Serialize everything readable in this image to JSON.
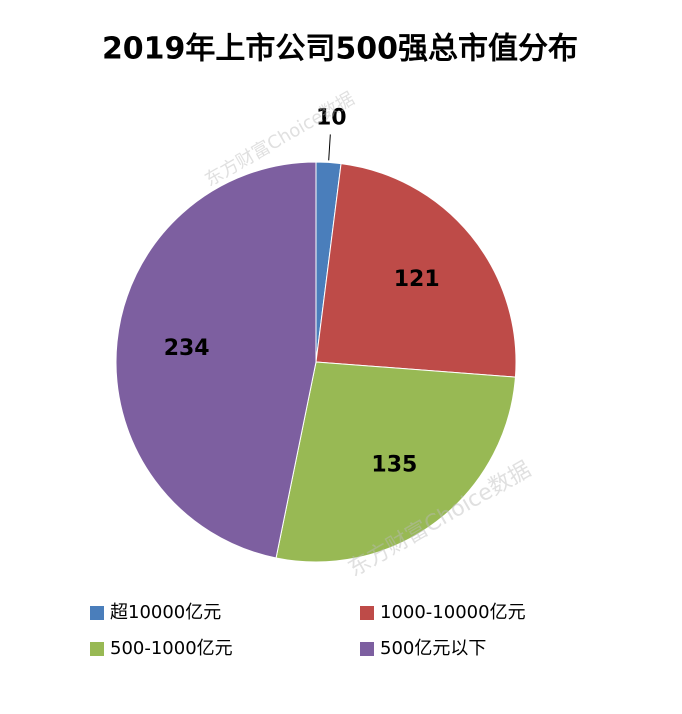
{
  "chart_data": {
    "type": "pie",
    "title": "2019年上市公司500强总市值分布",
    "categories": [
      "超10000亿元",
      "1000-10000亿元",
      "500-1000亿元",
      "500亿元以下"
    ],
    "values": [
      10,
      121,
      135,
      234
    ],
    "colors": [
      "#4a7ebb",
      "#be4b48",
      "#98b954",
      "#7d5fa0"
    ],
    "legend": "bottom",
    "watermarks": [
      "东方财富Choice数据",
      "东方财富Choice数据"
    ]
  }
}
